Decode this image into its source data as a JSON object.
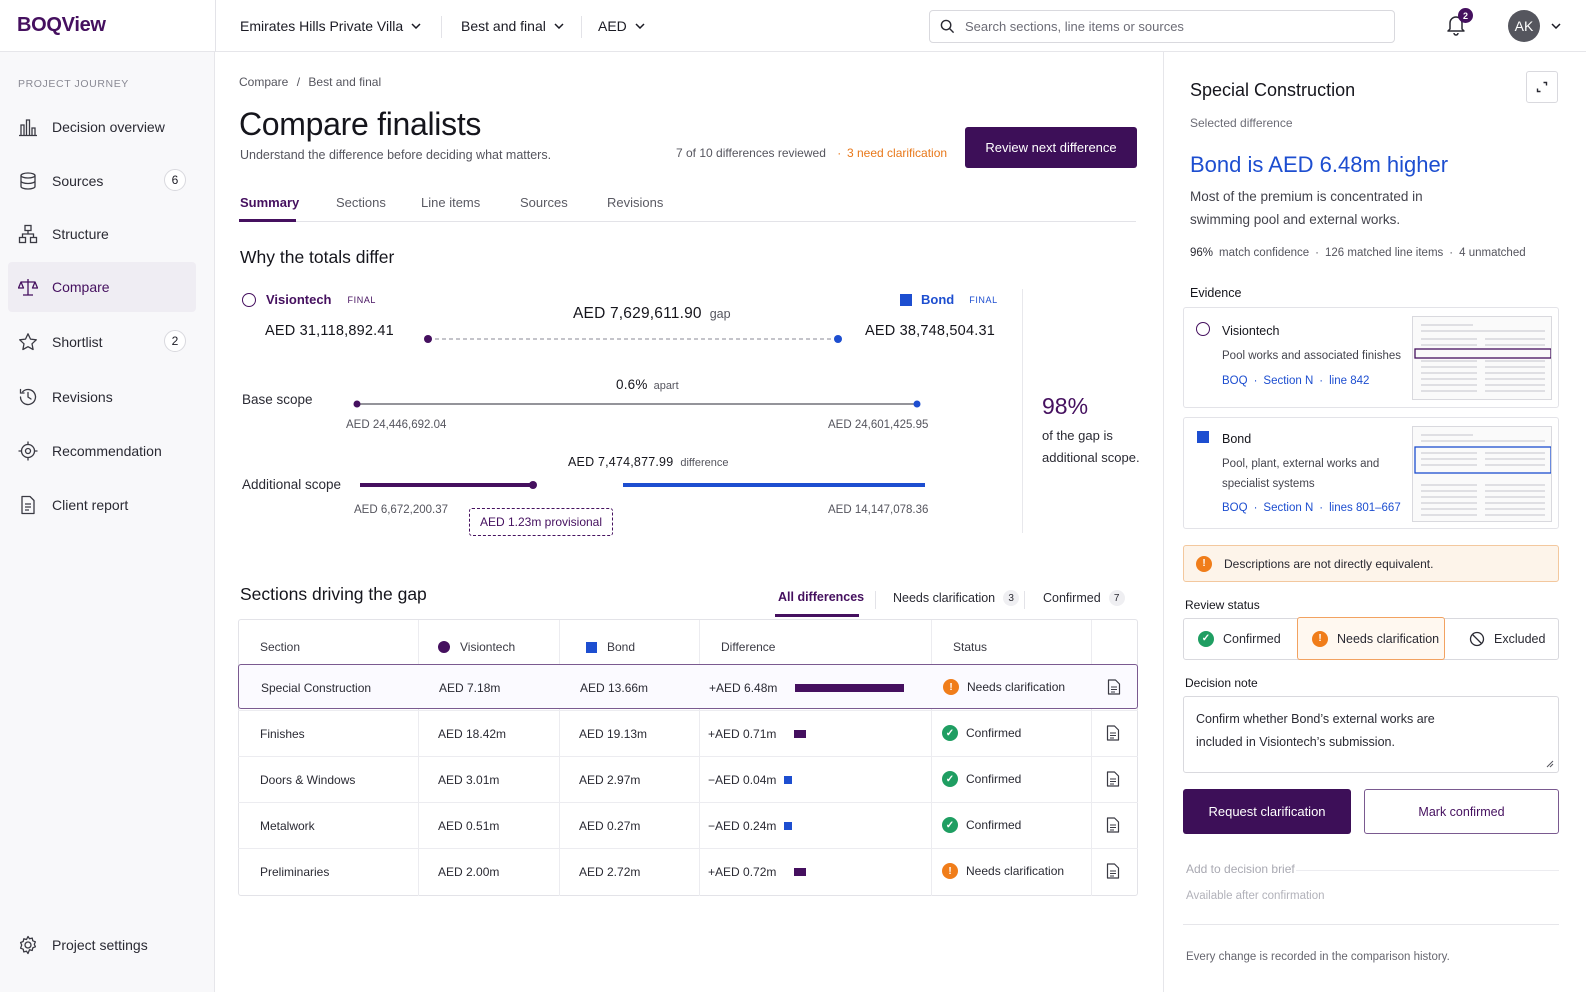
{
  "app": {
    "logo": "BOQView"
  },
  "topbar": {
    "project": "Emirates Hills Private Villa",
    "round": "Best and final",
    "currency": "AED",
    "search_placeholder": "Search sections, line items or sources",
    "notifications": "2",
    "avatar": "AK"
  },
  "sidebar": {
    "heading": "PROJECT JOURNEY",
    "items": [
      {
        "label": "Decision overview",
        "icon": "bar-chart-icon"
      },
      {
        "label": "Sources",
        "count": "6",
        "icon": "database-icon"
      },
      {
        "label": "Structure",
        "icon": "hierarchy-icon"
      },
      {
        "label": "Compare",
        "icon": "scale-icon",
        "active": true
      },
      {
        "label": "Shortlist",
        "count": "2",
        "icon": "star-icon"
      },
      {
        "label": "Revisions",
        "icon": "history-icon"
      },
      {
        "label": "Recommendation",
        "icon": "target-icon"
      },
      {
        "label": "Client report",
        "icon": "document-icon"
      }
    ],
    "settings": "Project settings"
  },
  "main": {
    "breadcrumb": [
      "Compare",
      "/",
      "Best and final"
    ],
    "title": "Compare finalists",
    "subtitle": "Understand the difference before deciding what matters.",
    "reviewed": "7 of 10 differences reviewed",
    "needs_clarification": "3 need clarification",
    "review_button": "Review next difference",
    "tabs": [
      "Summary",
      "Sections",
      "Line items",
      "Sources",
      "Revisions"
    ],
    "why": {
      "heading": "Why the totals differ",
      "final_tag": "FINAL",
      "a_name": "Visiontech",
      "b_name": "Bond",
      "a_total": "AED  31,118,892.41",
      "b_total": "AED  38,748,504.31",
      "gap_amount": "AED  7,629,611.90",
      "gap_word": "gap",
      "base_label": "Base scope",
      "base_pct": "0.6%",
      "base_apart": "apart",
      "base_a": "AED 24,446,692.04",
      "base_b": "AED 24,601,425.95",
      "add_label": "Additional scope",
      "add_diff": "AED  7,474,877.99",
      "add_diff_word": "difference",
      "add_a": "AED  6,672,200.37",
      "add_b": "AED 14,147,078.36",
      "provisional": "AED  1.23m  provisional",
      "pct": "98%",
      "pct_desc": "of the gap is additional scope."
    },
    "sections": {
      "heading": "Sections driving the gap",
      "filters": [
        {
          "label": "All differences"
        },
        {
          "label": "Needs clarification",
          "count": "3"
        },
        {
          "label": "Confirmed",
          "count": "7"
        }
      ],
      "columns": [
        "Section",
        "Visiontech",
        "Bond",
        "Difference",
        "Status"
      ],
      "rows": [
        {
          "section": "Special Construction",
          "a": "AED 7.18m",
          "b": "AED 13.66m",
          "diff": "+AED 6.48m",
          "diff_value": 6.48,
          "status": "Needs clarification",
          "status_kind": "warn"
        },
        {
          "section": "Finishes",
          "a": "AED 18.42m",
          "b": "AED 19.13m",
          "diff": "+AED 0.71m",
          "diff_value": 0.71,
          "status": "Confirmed",
          "status_kind": "ok"
        },
        {
          "section": "Doors & Windows",
          "a": "AED 3.01m",
          "b": "AED 2.97m",
          "diff": "−AED 0.04m",
          "diff_value": -0.04,
          "status": "Confirmed",
          "status_kind": "ok"
        },
        {
          "section": "Metalwork",
          "a": "AED 0.51m",
          "b": "AED 0.27m",
          "diff": "−AED 0.24m",
          "diff_value": -0.24,
          "status": "Confirmed",
          "status_kind": "ok"
        },
        {
          "section": "Preliminaries",
          "a": "AED 2.00m",
          "b": "AED 2.72m",
          "diff": "+AED 0.72m",
          "diff_value": 0.72,
          "status": "Needs clarification",
          "status_kind": "warn"
        }
      ]
    }
  },
  "panel": {
    "title": "Special Construction",
    "selected": "Selected difference",
    "headline": "Bond is AED 6.48m higher",
    "description": "Most of the premium is concentrated in swimming pool and external works.",
    "meta": [
      "96%",
      "match confidence",
      "·",
      "126 matched line items",
      "·",
      "4 unmatched"
    ],
    "evidence_heading": "Evidence",
    "evidence": [
      {
        "name": "Visiontech",
        "desc": "Pool works and associated finishes",
        "links": [
          "BOQ",
          "·",
          "Section N",
          "·",
          "line 842"
        ]
      },
      {
        "name": "Bond",
        "desc": "Pool, plant, external works and specialist systems",
        "links": [
          "BOQ",
          "·",
          "Section N",
          "·",
          "lines 801–667"
        ]
      }
    ],
    "warning": "Descriptions are not directly equivalent.",
    "review_status": "Review status",
    "status_options": [
      "Confirmed",
      "Needs clarification",
      "Excluded"
    ],
    "decision_note_label": "Decision note",
    "decision_note": "Confirm whether Bond’s external works are included in Visiontech’s submission.",
    "request_button": "Request clarification",
    "mark_button": "Mark confirmed",
    "add_brief": "Add to decision brief",
    "available": "Available after confirmation",
    "history": "Every change is recorded in the comparison history."
  },
  "colors": {
    "brand": "#45105F",
    "bond": "#1D4ED0",
    "warning": "#F07D1A",
    "confirmed": "#1F9E62"
  }
}
